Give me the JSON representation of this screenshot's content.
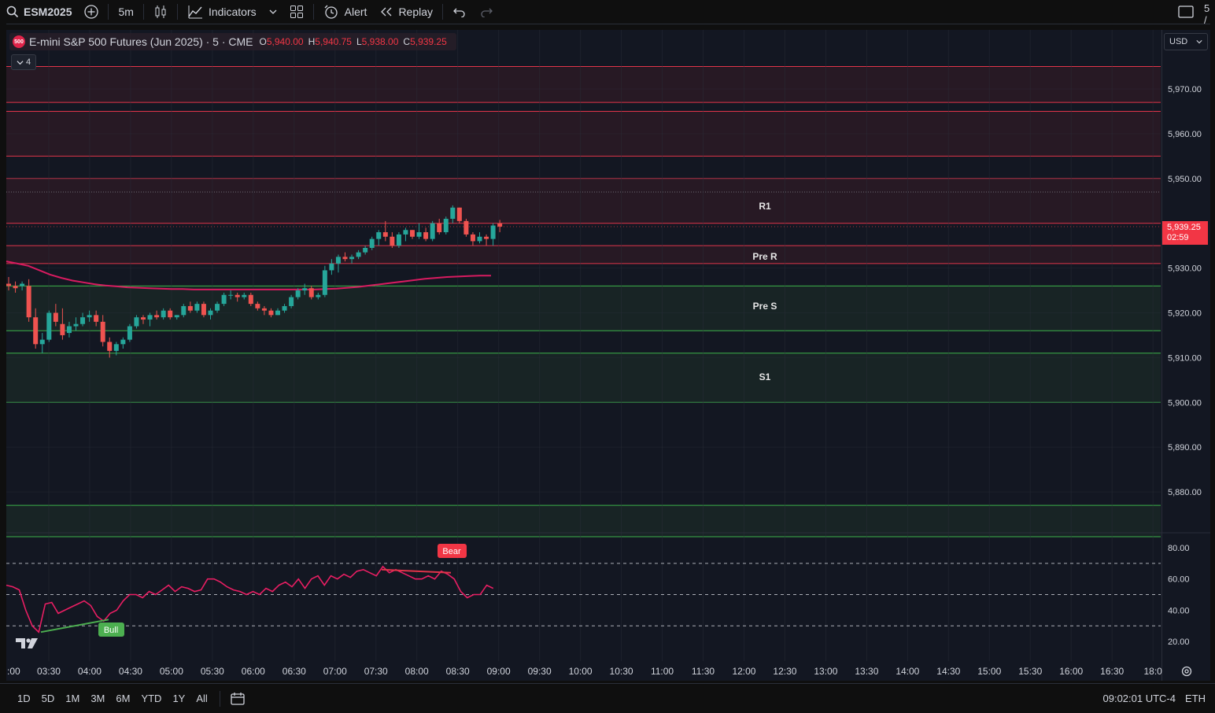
{
  "toolbar": {
    "symbol": "ESM2025",
    "interval": "5m",
    "indicators_label": "Indicators",
    "alert_label": "Alert",
    "replay_label": "Replay",
    "right_partial": "5 /"
  },
  "legend": {
    "logo_text": "500",
    "title": "E-mini S&P 500 Futures (Jun 2025) · 5 · CME",
    "open_key": "O",
    "open": "5,940.00",
    "high_key": "H",
    "high": "5,940.75",
    "low_key": "L",
    "low": "5,938.00",
    "close_key": "C",
    "close": "5,939.25",
    "collapse_count": "4"
  },
  "currency": "USD",
  "price_axis": {
    "ticks": [
      "5,970.00",
      "5,960.00",
      "5,950.00",
      "5,930.00",
      "5,920.00",
      "5,910.00",
      "5,900.00",
      "5,890.00",
      "5,880.00"
    ],
    "last_price": "5,939.25",
    "countdown": "02:59"
  },
  "oscillator_axis": {
    "ticks": [
      "80.00",
      "60.00",
      "40.00",
      "20.00"
    ]
  },
  "zone_labels": {
    "r1": "R1",
    "pre_r": "Pre R",
    "pre_s": "Pre S",
    "s1": "S1"
  },
  "divergence_labels": {
    "bear": "Bear",
    "bull": "Bull"
  },
  "time_axis": {
    "labels": [
      ":00",
      "03:30",
      "04:00",
      "04:30",
      "05:00",
      "05:30",
      "06:00",
      "06:30",
      "07:00",
      "07:30",
      "08:00",
      "08:30",
      "09:00",
      "09:30",
      "10:00",
      "10:30",
      "11:00",
      "11:30",
      "12:00",
      "12:30",
      "13:00",
      "13:30",
      "14:00",
      "14:30",
      "15:00",
      "15:30",
      "16:00",
      "16:30",
      "18:0"
    ]
  },
  "ranges": [
    "1D",
    "5D",
    "1M",
    "3M",
    "6M",
    "YTD",
    "1Y",
    "All"
  ],
  "status": {
    "clock": "09:02:01 UTC-4",
    "session": "ETH"
  },
  "chart_data": {
    "type": "candlestick",
    "title": "E-mini S&P 500 Futures (Jun 2025) · 5 · CME",
    "y_range": [
      5870,
      5980
    ],
    "last_price": 5939.25,
    "resistance_zones": [
      {
        "from": 5967,
        "to": 5975
      },
      {
        "from": 5955,
        "to": 5965
      },
      {
        "from": 5940,
        "to": 5950,
        "label": "R1"
      },
      {
        "from": 5931,
        "to": 5935,
        "label": "Pre R"
      }
    ],
    "support_zones": [
      {
        "from": 5916,
        "to": 5926,
        "label": "Pre S"
      },
      {
        "from": 5900,
        "to": 5911,
        "label": "S1"
      },
      {
        "from": 5870,
        "to": 5877
      }
    ],
    "candles": [
      [
        5926.5,
        5928.0,
        5925.0,
        5926.0
      ],
      [
        5926.0,
        5927.0,
        5924.5,
        5925.5
      ],
      [
        5926.0,
        5927.0,
        5925.0,
        5926.5
      ],
      [
        5926.0,
        5927.5,
        5918.0,
        5919.0
      ],
      [
        5919.0,
        5921.0,
        5912.0,
        5913.0
      ],
      [
        5913.0,
        5915.5,
        5911.0,
        5914.0
      ],
      [
        5914.0,
        5920.5,
        5913.5,
        5920.0
      ],
      [
        5920.0,
        5922.0,
        5917.0,
        5918.0
      ],
      [
        5917.5,
        5921.0,
        5914.0,
        5915.0
      ],
      [
        5915.5,
        5918.0,
        5914.5,
        5917.0
      ],
      [
        5917.0,
        5919.0,
        5916.0,
        5917.5
      ],
      [
        5917.5,
        5920.0,
        5917.0,
        5919.0
      ],
      [
        5919.0,
        5920.5,
        5918.0,
        5919.5
      ],
      [
        5919.5,
        5920.5,
        5917.0,
        5918.0
      ],
      [
        5918.0,
        5919.5,
        5912.5,
        5913.5
      ],
      [
        5913.5,
        5914.5,
        5910.0,
        5911.5
      ],
      [
        5911.5,
        5913.5,
        5910.5,
        5913.0
      ],
      [
        5913.0,
        5914.5,
        5912.0,
        5914.0
      ],
      [
        5914.0,
        5917.5,
        5913.5,
        5917.0
      ],
      [
        5917.0,
        5919.5,
        5916.5,
        5919.0
      ],
      [
        5919.0,
        5919.5,
        5917.5,
        5918.5
      ],
      [
        5918.5,
        5920.0,
        5917.0,
        5919.5
      ],
      [
        5919.5,
        5920.5,
        5918.5,
        5919.0
      ],
      [
        5919.0,
        5921.0,
        5918.5,
        5920.5
      ],
      [
        5920.5,
        5921.0,
        5918.5,
        5919.0
      ],
      [
        5919.0,
        5919.5,
        5918.5,
        5919.5
      ],
      [
        5919.5,
        5922.0,
        5919.0,
        5921.5
      ],
      [
        5921.5,
        5922.5,
        5920.0,
        5920.5
      ],
      [
        5920.5,
        5922.5,
        5920.0,
        5922.0
      ],
      [
        5922.0,
        5922.5,
        5919.0,
        5919.5
      ],
      [
        5919.5,
        5921.0,
        5918.5,
        5920.5
      ],
      [
        5920.5,
        5922.5,
        5920.0,
        5922.0
      ],
      [
        5922.0,
        5924.5,
        5921.5,
        5924.0
      ],
      [
        5924.0,
        5925.0,
        5923.0,
        5924.0
      ],
      [
        5924.0,
        5924.5,
        5922.5,
        5923.5
      ],
      [
        5923.5,
        5924.5,
        5923.0,
        5924.0
      ],
      [
        5924.0,
        5924.5,
        5921.5,
        5922.0
      ],
      [
        5922.0,
        5922.5,
        5920.5,
        5921.0
      ],
      [
        5921.0,
        5921.5,
        5919.5,
        5920.5
      ],
      [
        5920.5,
        5921.0,
        5919.0,
        5919.5
      ],
      [
        5919.5,
        5921.0,
        5919.5,
        5920.5
      ],
      [
        5920.5,
        5922.0,
        5920.0,
        5921.5
      ],
      [
        5921.5,
        5924.0,
        5921.0,
        5923.5
      ],
      [
        5923.5,
        5925.5,
        5923.0,
        5925.0
      ],
      [
        5925.0,
        5926.5,
        5924.0,
        5925.5
      ],
      [
        5925.5,
        5926.0,
        5923.0,
        5923.5
      ],
      [
        5923.5,
        5924.5,
        5923.0,
        5924.0
      ],
      [
        5924.0,
        5930.5,
        5923.5,
        5929.5
      ],
      [
        5929.5,
        5932.0,
        5928.5,
        5931.0
      ],
      [
        5931.0,
        5933.0,
        5929.0,
        5932.5
      ],
      [
        5932.5,
        5933.5,
        5931.5,
        5932.0
      ],
      [
        5932.0,
        5933.0,
        5931.0,
        5932.5
      ],
      [
        5932.5,
        5934.0,
        5932.0,
        5933.5
      ],
      [
        5933.5,
        5935.0,
        5933.0,
        5934.5
      ],
      [
        5934.5,
        5937.0,
        5934.0,
        5936.5
      ],
      [
        5936.5,
        5938.5,
        5935.0,
        5938.0
      ],
      [
        5938.0,
        5940.5,
        5936.0,
        5937.0
      ],
      [
        5937.0,
        5938.0,
        5934.5,
        5935.0
      ],
      [
        5935.0,
        5938.0,
        5934.5,
        5937.5
      ],
      [
        5937.5,
        5939.0,
        5936.0,
        5938.5
      ],
      [
        5938.5,
        5938.5,
        5936.5,
        5937.0
      ],
      [
        5937.0,
        5940.0,
        5936.5,
        5938.0
      ],
      [
        5938.0,
        5939.0,
        5936.0,
        5936.5
      ],
      [
        5936.5,
        5940.5,
        5936.0,
        5940.0
      ],
      [
        5940.0,
        5941.0,
        5937.5,
        5938.0
      ],
      [
        5938.0,
        5941.5,
        5937.5,
        5941.0
      ],
      [
        5941.0,
        5944.0,
        5940.0,
        5943.5
      ],
      [
        5943.5,
        5943.5,
        5940.0,
        5940.5
      ],
      [
        5940.5,
        5941.0,
        5937.0,
        5937.5
      ],
      [
        5937.5,
        5938.0,
        5935.0,
        5936.0
      ],
      [
        5936.0,
        5938.0,
        5935.5,
        5937.0
      ],
      [
        5937.0,
        5937.5,
        5935.0,
        5936.5
      ],
      [
        5936.5,
        5940.0,
        5935.0,
        5939.5
      ],
      [
        5940.0,
        5940.75,
        5938.0,
        5939.25
      ]
    ],
    "ma_line": [
      5931.5,
      5931.0,
      5930.5,
      5929.5,
      5928.5,
      5927.8,
      5927.2,
      5926.8,
      5926.4,
      5926.1,
      5925.9,
      5925.7,
      5925.6,
      5925.5,
      5925.4,
      5925.3,
      5925.3,
      5925.2,
      5925.2,
      5925.2,
      5925.2,
      5925.2,
      5925.2,
      5925.2,
      5925.2,
      5925.2,
      5925.2,
      5925.2,
      5925.2,
      5925.3,
      5925.4,
      5925.6,
      5925.8,
      5926.1,
      5926.4,
      5926.7,
      5927.0,
      5927.3,
      5927.6,
      5927.8,
      5928.0,
      5928.1,
      5928.2,
      5928.3,
      5928.3
    ],
    "oscillator": {
      "levels": [
        70,
        50,
        30
      ],
      "y_range": [
        12,
        88
      ],
      "values": [
        56,
        55,
        53,
        40,
        30,
        26,
        44,
        45,
        38,
        40,
        42,
        44,
        46,
        43,
        36,
        33,
        38,
        40,
        46,
        50,
        50,
        48,
        52,
        50,
        53,
        56,
        52,
        55,
        54,
        52,
        53,
        60,
        60,
        58,
        55,
        53,
        52,
        50,
        52,
        50,
        54,
        52,
        56,
        58,
        55,
        60,
        54,
        60,
        62,
        56,
        62,
        60,
        63,
        61,
        65,
        66,
        64,
        62,
        68,
        64,
        66,
        64,
        62,
        60,
        60,
        62,
        60,
        65,
        63,
        60,
        52,
        48,
        50,
        50,
        56,
        54
      ]
    },
    "divergences": [
      {
        "type": "bear",
        "label": "Bear"
      },
      {
        "type": "bull",
        "label": "Bull"
      }
    ]
  }
}
